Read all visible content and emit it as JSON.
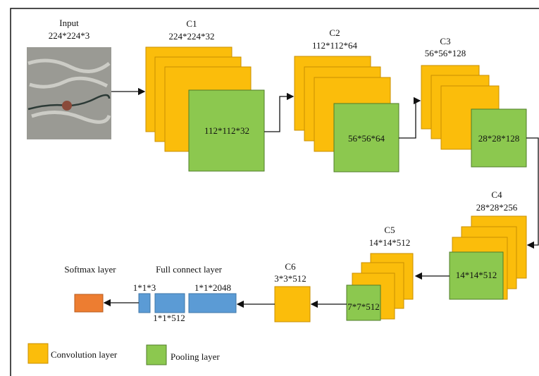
{
  "input": {
    "title": "Input",
    "size": "224*224*3"
  },
  "layers": [
    {
      "name": "C1",
      "size": "224*224*32",
      "pool": "112*112*32"
    },
    {
      "name": "C2",
      "size": "112*112*64",
      "pool": "56*56*64"
    },
    {
      "name": "C3",
      "size": "56*56*128",
      "pool": "28*28*128"
    },
    {
      "name": "C4",
      "size": "28*28*256",
      "pool": "14*14*512"
    },
    {
      "name": "C5",
      "size": "14*14*512",
      "pool": "7*7*512"
    },
    {
      "name": "C6",
      "size": "3*3*512"
    }
  ],
  "full_connect": {
    "title": "Full connect layer",
    "sizes": [
      "1*1*3",
      "1*1*512",
      "1*1*2048"
    ]
  },
  "softmax": {
    "title": "Softmax layer"
  },
  "legend": {
    "convolution": "Convolution layer",
    "pooling": "Pooling layer"
  }
}
